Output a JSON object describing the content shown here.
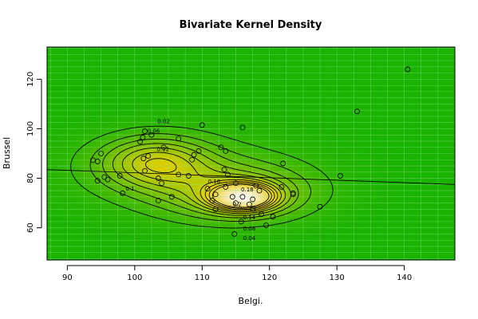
{
  "chart_data": {
    "type": "scatter",
    "title": "Bivariate Kernel Density",
    "xlabel": "Belgi.",
    "ylabel": "Brussel",
    "xlim": [
      87,
      147.5
    ],
    "ylim": [
      47,
      133
    ],
    "xticks": [
      90,
      100,
      110,
      120,
      130,
      140
    ],
    "yticks": [
      60,
      80,
      100,
      120
    ],
    "grid": true,
    "points": [
      {
        "x": 93.8,
        "y": 87.3
      },
      {
        "x": 94.5,
        "y": 86.8
      },
      {
        "x": 95.0,
        "y": 90.0
      },
      {
        "x": 94.5,
        "y": 79.0
      },
      {
        "x": 95.5,
        "y": 80.5
      },
      {
        "x": 96.0,
        "y": 79.5
      },
      {
        "x": 97.8,
        "y": 81.0
      },
      {
        "x": 98.2,
        "y": 74.0
      },
      {
        "x": 100.8,
        "y": 94.8
      },
      {
        "x": 101.2,
        "y": 96.5
      },
      {
        "x": 101.5,
        "y": 99.0
      },
      {
        "x": 101.3,
        "y": 88.0
      },
      {
        "x": 102.0,
        "y": 89.0
      },
      {
        "x": 102.5,
        "y": 97.5
      },
      {
        "x": 101.5,
        "y": 83.0
      },
      {
        "x": 103.5,
        "y": 80.0
      },
      {
        "x": 104.0,
        "y": 78.0
      },
      {
        "x": 103.5,
        "y": 71.0
      },
      {
        "x": 104.3,
        "y": 92.5
      },
      {
        "x": 105.5,
        "y": 72.5
      },
      {
        "x": 106.5,
        "y": 96.0
      },
      {
        "x": 106.5,
        "y": 81.5
      },
      {
        "x": 108.0,
        "y": 81.0
      },
      {
        "x": 108.5,
        "y": 87.5
      },
      {
        "x": 108.8,
        "y": 89.5
      },
      {
        "x": 109.5,
        "y": 91.0
      },
      {
        "x": 110.0,
        "y": 101.5
      },
      {
        "x": 110.8,
        "y": 75.8
      },
      {
        "x": 111.5,
        "y": 71.0
      },
      {
        "x": 112.0,
        "y": 73.5
      },
      {
        "x": 112.0,
        "y": 67.5
      },
      {
        "x": 112.8,
        "y": 92.5
      },
      {
        "x": 113.5,
        "y": 91.0
      },
      {
        "x": 113.3,
        "y": 83.5
      },
      {
        "x": 113.8,
        "y": 81.5
      },
      {
        "x": 113.5,
        "y": 76.5
      },
      {
        "x": 114.5,
        "y": 72.5
      },
      {
        "x": 115.0,
        "y": 70.0
      },
      {
        "x": 114.8,
        "y": 57.5
      },
      {
        "x": 115.0,
        "y": 78.0
      },
      {
        "x": 115.8,
        "y": 62.5
      },
      {
        "x": 116.0,
        "y": 72.5
      },
      {
        "x": 116.0,
        "y": 100.5
      },
      {
        "x": 117.0,
        "y": 69.5
      },
      {
        "x": 117.5,
        "y": 71.5
      },
      {
        "x": 117.5,
        "y": 67.5
      },
      {
        "x": 118.0,
        "y": 77.0
      },
      {
        "x": 118.5,
        "y": 75.0
      },
      {
        "x": 118.8,
        "y": 65.5
      },
      {
        "x": 119.5,
        "y": 61.0
      },
      {
        "x": 120.5,
        "y": 64.5
      },
      {
        "x": 121.8,
        "y": 76.5
      },
      {
        "x": 122.0,
        "y": 86.0
      },
      {
        "x": 123.5,
        "y": 74.0
      },
      {
        "x": 123.5,
        "y": 73.5
      },
      {
        "x": 127.5,
        "y": 68.5
      },
      {
        "x": 130.5,
        "y": 81.0
      },
      {
        "x": 133.0,
        "y": 107.0
      },
      {
        "x": 140.5,
        "y": 124.0
      }
    ],
    "regression_line": {
      "x": [
        87,
        147.5
      ],
      "y": [
        83.5,
        77.5
      ]
    },
    "density_peaks": [
      {
        "x": 116.0,
        "y": 72.5,
        "sx": 3.2,
        "sy": 3.6,
        "w": 0.24
      },
      {
        "x": 115.0,
        "y": 74.0,
        "sx": 7.5,
        "sy": 7.5,
        "w": 0.09
      },
      {
        "x": 103.0,
        "y": 86.5,
        "sx": 5.5,
        "sy": 7.0,
        "w": 0.11
      },
      {
        "x": 108.0,
        "y": 82.0,
        "sx": 12.0,
        "sy": 11.0,
        "w": 0.035
      }
    ],
    "contour_levels": [
      0.02,
      0.04,
      0.06,
      0.08,
      0.1,
      0.12,
      0.14,
      0.16,
      0.18,
      0.2
    ],
    "contour_labels": [
      {
        "text": "0.02",
        "x": 104.3,
        "y": 103.0
      },
      {
        "text": "0.04",
        "x": 117.0,
        "y": 55.8
      },
      {
        "text": "0.06",
        "x": 102.8,
        "y": 99.2
      },
      {
        "text": "0.08",
        "x": 117.0,
        "y": 59.8
      },
      {
        "text": "0.1",
        "x": 99.3,
        "y": 75.8
      },
      {
        "text": "0.12",
        "x": 104.2,
        "y": 91.8
      },
      {
        "text": "0.14",
        "x": 117.0,
        "y": 64.3
      },
      {
        "text": "0.16",
        "x": 111.8,
        "y": 78.8
      },
      {
        "text": "0.18",
        "x": 116.7,
        "y": 75.5
      },
      {
        "text": "0.2",
        "x": 115.2,
        "y": 69.5
      }
    ],
    "colors": {
      "low": "#19b300",
      "mid": "#e8d000",
      "high": "#fffaf5",
      "grid": "#8fe88f",
      "contour": "#000000"
    }
  }
}
